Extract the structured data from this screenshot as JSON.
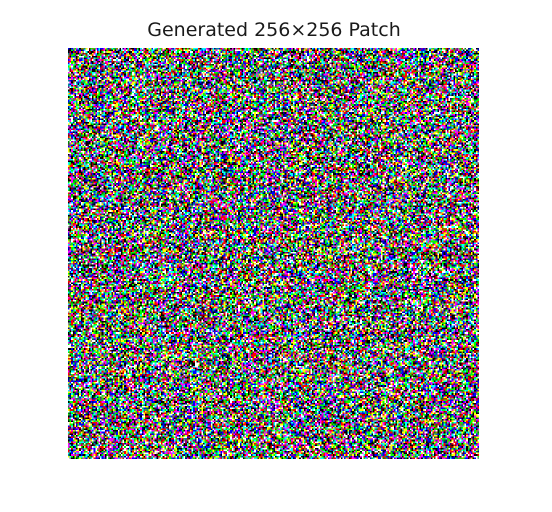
{
  "figure": {
    "title": "Generated 256×256 Patch"
  },
  "image": {
    "content": "random-rgb-noise",
    "resolution": [
      256,
      256
    ],
    "palette": [
      "#000000",
      "#ff0000",
      "#00ff00",
      "#0000ff",
      "#ffff00",
      "#ff00ff",
      "#00ffff",
      "#ffffff"
    ]
  }
}
